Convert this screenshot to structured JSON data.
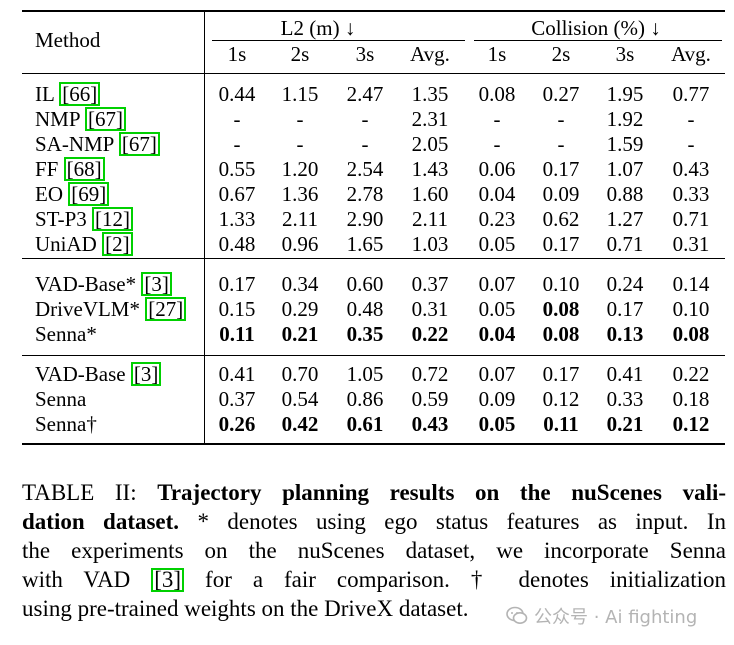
{
  "table": {
    "headers": {
      "method": "Method",
      "l2_group": "L2 (m) ↓",
      "collision_group": "Collision (%) ↓",
      "sub": [
        "1s",
        "2s",
        "3s",
        "Avg.",
        "1s",
        "2s",
        "3s",
        "Avg."
      ]
    },
    "groups": [
      {
        "rows": [
          {
            "method": "IL ",
            "cite": "[66]",
            "values": [
              "0.44",
              "1.15",
              "2.47",
              "1.35",
              "0.08",
              "0.27",
              "1.95",
              "0.77"
            ],
            "bold": []
          },
          {
            "method": "NMP ",
            "cite": "[67]",
            "values": [
              "-",
              "-",
              "-",
              "2.31",
              "-",
              "-",
              "1.92",
              "-"
            ],
            "bold": []
          },
          {
            "method": "SA-NMP ",
            "cite": "[67]",
            "values": [
              "-",
              "-",
              "-",
              "2.05",
              "-",
              "-",
              "1.59",
              "-"
            ],
            "bold": []
          },
          {
            "method": "FF ",
            "cite": "[68]",
            "values": [
              "0.55",
              "1.20",
              "2.54",
              "1.43",
              "0.06",
              "0.17",
              "1.07",
              "0.43"
            ],
            "bold": []
          },
          {
            "method": "EO ",
            "cite": "[69]",
            "values": [
              "0.67",
              "1.36",
              "2.78",
              "1.60",
              "0.04",
              "0.09",
              "0.88",
              "0.33"
            ],
            "bold": []
          },
          {
            "method": "ST-P3 ",
            "cite": "[12]",
            "values": [
              "1.33",
              "2.11",
              "2.90",
              "2.11",
              "0.23",
              "0.62",
              "1.27",
              "0.71"
            ],
            "bold": []
          },
          {
            "method": "UniAD ",
            "cite": "[2]",
            "values": [
              "0.48",
              "0.96",
              "1.65",
              "1.03",
              "0.05",
              "0.17",
              "0.71",
              "0.31"
            ],
            "bold": []
          }
        ]
      },
      {
        "rows": [
          {
            "method": "VAD-Base* ",
            "cite": "[3]",
            "values": [
              "0.17",
              "0.34",
              "0.60",
              "0.37",
              "0.07",
              "0.10",
              "0.24",
              "0.14"
            ],
            "bold": []
          },
          {
            "method": "DriveVLM* ",
            "cite": "[27]",
            "values": [
              "0.15",
              "0.29",
              "0.48",
              "0.31",
              "0.05",
              "0.08",
              "0.17",
              "0.10"
            ],
            "bold": [
              5
            ]
          },
          {
            "method": "Senna*",
            "cite": "",
            "values": [
              "0.11",
              "0.21",
              "0.35",
              "0.22",
              "0.04",
              "0.08",
              "0.13",
              "0.08"
            ],
            "bold": [
              0,
              1,
              2,
              3,
              4,
              5,
              6,
              7
            ]
          }
        ]
      },
      {
        "rows": [
          {
            "method": "VAD-Base ",
            "cite": "[3]",
            "values": [
              "0.41",
              "0.70",
              "1.05",
              "0.72",
              "0.07",
              "0.17",
              "0.41",
              "0.22"
            ],
            "bold": []
          },
          {
            "method": "Senna",
            "cite": "",
            "values": [
              "0.37",
              "0.54",
              "0.86",
              "0.59",
              "0.09",
              "0.12",
              "0.33",
              "0.18"
            ],
            "bold": []
          },
          {
            "method": "Senna†",
            "cite": "",
            "values": [
              "0.26",
              "0.42",
              "0.61",
              "0.43",
              "0.05",
              "0.11",
              "0.21",
              "0.12"
            ],
            "bold": [
              0,
              1,
              2,
              3,
              4,
              5,
              6,
              7
            ]
          }
        ]
      }
    ]
  },
  "caption": {
    "prefix": "TABLE II: ",
    "bold": "Trajectory planning results on the nuScenes validation dataset.",
    "text1": " * denotes using ego status features as input. In the experiments on the nuScenes dataset, we incorporate Senna with VAD ",
    "cite": "[3]",
    "text2": " for a fair comparison. † denotes initialization using pre-trained weights on the DriveX dataset."
  },
  "watermark": {
    "text": "公众号 · Ai fighting",
    "icon": "wechat-icon"
  }
}
